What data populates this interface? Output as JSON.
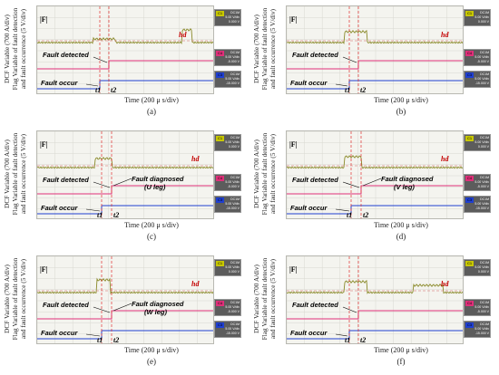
{
  "y_label_line1": "DCF Variable (700 A/div)",
  "y_label_line2": "Flag Variable of fault detection",
  "y_label_line3": "and fault occurrence (5 V/div)",
  "x_label": "Time (200 μ s/div)",
  "f_symbol": "|F|",
  "hd_symbol": "hd",
  "t1": "t1",
  "t2": "t2",
  "fault_detected": "Fault detected",
  "fault_occur": "Fault occur",
  "channels": [
    {
      "tag": "C1",
      "color": "#c8c800",
      "coupling": "DC1M",
      "scale": "5.00 V/div",
      "offset": "0.000 V"
    },
    {
      "tag": "C4",
      "color": "#e0307a",
      "coupling": "DC1M",
      "scale": "5.00 V/div",
      "offset": "-5.000 V"
    },
    {
      "tag": "C3",
      "color": "#1f3fd0",
      "coupling": "DC1M",
      "scale": "5.00 V/div",
      "offset": "-15.000 V"
    }
  ],
  "panels": [
    {
      "label": "(a)",
      "diag1": "",
      "diag2": ""
    },
    {
      "label": "(b)",
      "diag1": "",
      "diag2": ""
    },
    {
      "label": "(c)",
      "diag1": "Fault diagnosed",
      "diag2": "(U leg)"
    },
    {
      "label": "(d)",
      "diag1": "Fault diagnosed",
      "diag2": "(V leg)"
    },
    {
      "label": "(e)",
      "diag1": "Fault diagnosed",
      "diag2": "(W leg)"
    },
    {
      "label": "(f)",
      "diag1": "",
      "diag2": ""
    }
  ]
}
